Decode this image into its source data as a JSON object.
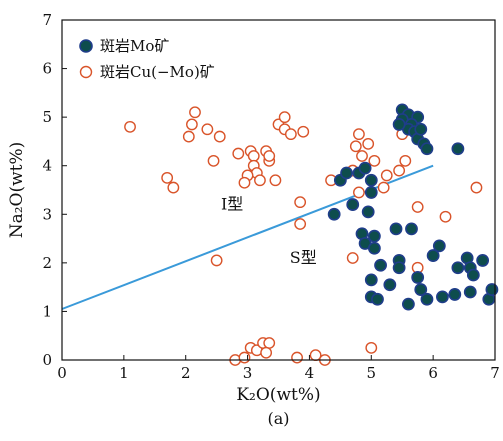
{
  "colors": {
    "mo_fill": "#0e4d4d",
    "mo_edge": "#1f3d8a",
    "cu_edge": "#d9542a",
    "trend_line": "#3a9ad9",
    "axis": "#111111"
  },
  "chart_data": {
    "type": "scatter",
    "xlabel": "K₂O(wt%)",
    "ylabel": "Na₂O(wt%)",
    "xlim": [
      0,
      7
    ],
    "ylim": [
      0,
      7
    ],
    "x_ticks": [
      "0",
      "1",
      "2",
      "3",
      "4",
      "5",
      "6",
      "7"
    ],
    "y_ticks": [
      "0",
      "1",
      "2",
      "3",
      "4",
      "5",
      "6",
      "7"
    ],
    "caption": "(a)",
    "legend_position": "top-left",
    "annotations": [
      {
        "text": "I型",
        "x": 2.75,
        "y": 3.1
      },
      {
        "text": "S型",
        "x": 3.9,
        "y": 2.0
      }
    ],
    "trend_line": {
      "x": [
        0,
        6
      ],
      "y": [
        1.05,
        4.0
      ]
    },
    "series": [
      {
        "name": "斑岩Mo矿",
        "marker": "filled-circle",
        "points": [
          [
            5.5,
            5.15
          ],
          [
            5.6,
            5.05
          ],
          [
            5.5,
            4.95
          ],
          [
            5.75,
            5.0
          ],
          [
            5.65,
            4.85
          ],
          [
            5.6,
            4.75
          ],
          [
            5.7,
            4.7
          ],
          [
            5.75,
            4.55
          ],
          [
            5.8,
            4.75
          ],
          [
            5.85,
            4.45
          ],
          [
            5.9,
            4.35
          ],
          [
            5.45,
            4.85
          ],
          [
            6.4,
            4.35
          ],
          [
            4.5,
            3.7
          ],
          [
            4.6,
            3.85
          ],
          [
            4.8,
            3.85
          ],
          [
            4.9,
            3.95
          ],
          [
            5.0,
            3.7
          ],
          [
            5.0,
            3.45
          ],
          [
            4.7,
            3.2
          ],
          [
            4.4,
            3.0
          ],
          [
            4.95,
            3.05
          ],
          [
            4.85,
            2.6
          ],
          [
            5.05,
            2.55
          ],
          [
            4.9,
            2.4
          ],
          [
            5.05,
            2.3
          ],
          [
            5.15,
            1.95
          ],
          [
            5.4,
            2.7
          ],
          [
            5.65,
            2.7
          ],
          [
            5.45,
            2.05
          ],
          [
            5.45,
            1.9
          ],
          [
            5.0,
            1.65
          ],
          [
            5.0,
            1.3
          ],
          [
            5.1,
            1.25
          ],
          [
            5.3,
            1.55
          ],
          [
            5.6,
            1.15
          ],
          [
            5.75,
            1.7
          ],
          [
            5.8,
            1.45
          ],
          [
            5.9,
            1.25
          ],
          [
            6.0,
            2.15
          ],
          [
            6.1,
            2.35
          ],
          [
            6.15,
            1.3
          ],
          [
            6.35,
            1.35
          ],
          [
            6.4,
            1.9
          ],
          [
            6.55,
            2.1
          ],
          [
            6.6,
            1.9
          ],
          [
            6.65,
            1.75
          ],
          [
            6.6,
            1.4
          ],
          [
            6.8,
            2.05
          ],
          [
            6.9,
            1.25
          ],
          [
            6.95,
            1.45
          ]
        ]
      },
      {
        "name": "斑岩Cu(−Mo)矿",
        "marker": "open-circle",
        "points": [
          [
            1.1,
            4.8
          ],
          [
            1.7,
            3.75
          ],
          [
            1.8,
            3.55
          ],
          [
            2.1,
            4.85
          ],
          [
            2.15,
            5.1
          ],
          [
            2.05,
            4.6
          ],
          [
            2.35,
            4.75
          ],
          [
            2.45,
            4.1
          ],
          [
            2.55,
            4.6
          ],
          [
            2.5,
            2.05
          ],
          [
            2.85,
            4.25
          ],
          [
            3.05,
            4.3
          ],
          [
            3.1,
            4.2
          ],
          [
            3.1,
            4.0
          ],
          [
            3.15,
            3.85
          ],
          [
            3.0,
            3.8
          ],
          [
            3.2,
            3.7
          ],
          [
            3.3,
            4.3
          ],
          [
            3.35,
            4.1
          ],
          [
            3.35,
            4.2
          ],
          [
            2.95,
            3.65
          ],
          [
            3.45,
            3.7
          ],
          [
            3.5,
            4.85
          ],
          [
            3.6,
            5.0
          ],
          [
            3.6,
            4.75
          ],
          [
            3.7,
            4.65
          ],
          [
            3.9,
            4.7
          ],
          [
            3.85,
            3.25
          ],
          [
            3.85,
            2.8
          ],
          [
            4.35,
            3.7
          ],
          [
            4.7,
            3.9
          ],
          [
            4.75,
            4.4
          ],
          [
            4.8,
            4.65
          ],
          [
            4.85,
            4.2
          ],
          [
            4.8,
            3.45
          ],
          [
            4.95,
            4.45
          ],
          [
            5.05,
            4.1
          ],
          [
            5.2,
            3.55
          ],
          [
            5.25,
            3.8
          ],
          [
            5.45,
            3.9
          ],
          [
            5.55,
            4.1
          ],
          [
            5.5,
            4.65
          ],
          [
            5.45,
            4.85
          ],
          [
            5.75,
            3.15
          ],
          [
            5.75,
            1.9
          ],
          [
            6.2,
            2.95
          ],
          [
            6.7,
            3.55
          ],
          [
            4.7,
            2.1
          ],
          [
            5.0,
            0.25
          ],
          [
            2.8,
            0.0
          ],
          [
            2.95,
            0.05
          ],
          [
            3.05,
            0.25
          ],
          [
            3.15,
            0.2
          ],
          [
            3.25,
            0.35
          ],
          [
            3.35,
            0.35
          ],
          [
            3.3,
            0.15
          ],
          [
            4.1,
            0.1
          ],
          [
            4.25,
            0.0
          ],
          [
            3.8,
            0.05
          ]
        ]
      }
    ]
  }
}
